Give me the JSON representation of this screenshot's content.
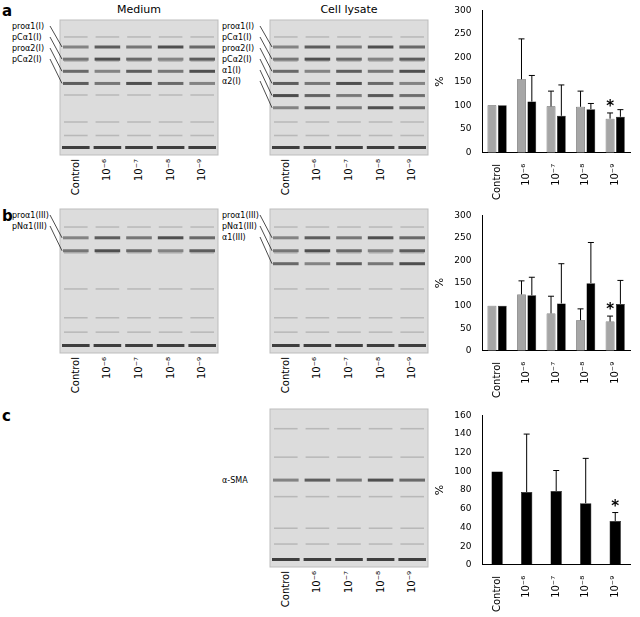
{
  "figure": {
    "panels": [
      {
        "label": "a",
        "gels": [
          {
            "title": "Medium",
            "band_labels": [
              "proα1(I)",
              "pCα1(I)",
              "proα2(I)",
              "pCα2(I)"
            ],
            "lanes": [
              "Control",
              "10⁻⁶",
              "10⁻⁷",
              "10⁻⁸",
              "10⁻⁹"
            ]
          },
          {
            "title": "Cell lysate",
            "band_labels": [
              "proα1(I)",
              "pCα1(I)",
              "proα2(I)",
              "pCα2(I)",
              "α1(I)",
              "α2(I)"
            ],
            "lanes": [
              "Control",
              "10⁻⁶",
              "10⁻⁷",
              "10⁻⁸",
              "10⁻⁹"
            ]
          }
        ]
      },
      {
        "label": "b",
        "gels": [
          {
            "band_labels": [
              "proα1(III)",
              "pNα1(III)"
            ],
            "lanes": [
              "Control",
              "10⁻⁶",
              "10⁻⁷",
              "10⁻⁸",
              "10⁻⁹"
            ]
          },
          {
            "band_labels": [
              "proα1(III)",
              "pNα1(III)",
              "α1(III)"
            ],
            "lanes": [
              "Control",
              "10⁻⁶",
              "10⁻⁷",
              "10⁻⁸",
              "10⁻⁹"
            ]
          }
        ]
      },
      {
        "label": "c",
        "gels": [
          {
            "band_labels": [
              "α-SMA"
            ],
            "lanes": [
              "Control",
              "10⁻⁶",
              "10⁻⁷",
              "10⁻⁸",
              "10⁻⁹"
            ]
          }
        ]
      }
    ]
  },
  "chart_data": [
    {
      "type": "bar",
      "categories": [
        "Control",
        "10⁻⁶",
        "10⁻⁷",
        "10⁻⁸",
        "10⁻⁹"
      ],
      "y_label": "%",
      "ylim": [
        0,
        300
      ],
      "yticks": [
        0,
        50,
        100,
        150,
        200,
        250,
        300
      ],
      "grid": false,
      "series": [
        {
          "color": "#a6a6a6",
          "values": [
            100,
            155,
            98,
            97,
            72
          ],
          "errors": [
            null,
            85,
            32,
            33,
            12
          ],
          "annotations": [
            {
              "category": "10⁻⁹",
              "text": "*"
            }
          ]
        },
        {
          "color": "#000000",
          "values": [
            100,
            108,
            78,
            92,
            76
          ],
          "errors": [
            null,
            55,
            65,
            12,
            15
          ]
        }
      ]
    },
    {
      "type": "bar",
      "categories": [
        "Control",
        "10⁻⁶",
        "10⁻⁷",
        "10⁻⁸",
        "10⁻⁹"
      ],
      "y_label": "%",
      "ylim": [
        0,
        300
      ],
      "yticks": [
        0,
        50,
        100,
        150,
        200,
        250,
        300
      ],
      "grid": false,
      "series": [
        {
          "color": "#a6a6a6",
          "values": [
            100,
            125,
            83,
            68,
            65
          ],
          "errors": [
            null,
            30,
            38,
            25,
            12
          ],
          "annotations": [
            {
              "category": "10⁻⁹",
              "text": "*"
            }
          ]
        },
        {
          "color": "#000000",
          "values": [
            100,
            123,
            105,
            150,
            104
          ],
          "errors": [
            null,
            40,
            88,
            90,
            52
          ]
        }
      ]
    },
    {
      "type": "bar",
      "categories": [
        "Control",
        "10⁻⁶",
        "10⁻⁷",
        "10⁻⁸",
        "10⁻⁹"
      ],
      "y_label": "%",
      "ylim": [
        0,
        160
      ],
      "yticks": [
        0,
        20,
        40,
        60,
        80,
        100,
        120,
        140,
        160
      ],
      "grid": false,
      "series": [
        {
          "color": "#000000",
          "values": [
            100,
            78,
            79,
            66,
            47
          ],
          "errors": [
            null,
            62,
            22,
            48,
            9
          ],
          "annotations": [
            {
              "category": "10⁻⁹",
              "text": "*"
            }
          ]
        }
      ]
    }
  ]
}
